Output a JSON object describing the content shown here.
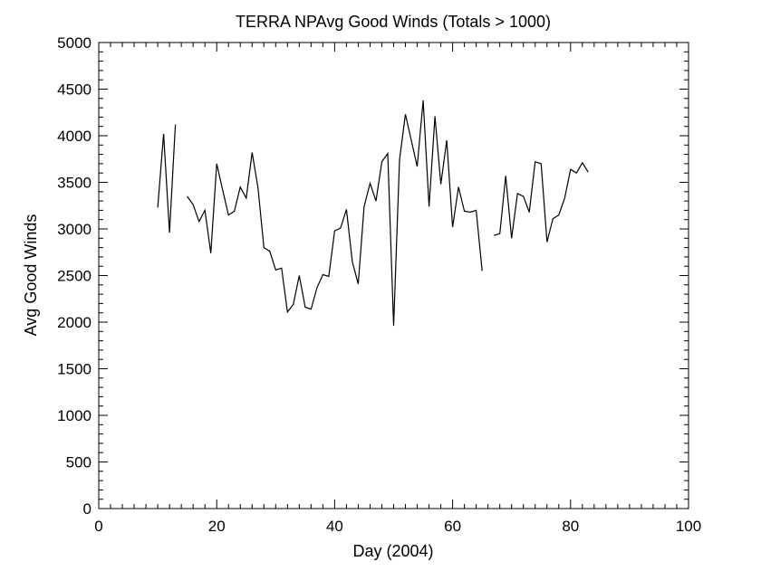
{
  "chart_data": {
    "type": "line",
    "title": "TERRA NPAvg Good Winds (Totals > 1000)",
    "xlabel": "Day (2004)",
    "ylabel": "Avg Good Winds",
    "xlim": [
      0,
      100
    ],
    "ylim": [
      0,
      5000
    ],
    "xticks": [
      "0",
      "20",
      "40",
      "60",
      "80",
      "100"
    ],
    "yticks": [
      "0",
      "500",
      "1000",
      "1500",
      "2000",
      "2500",
      "3000",
      "3500",
      "4000",
      "4500",
      "5000"
    ],
    "grid": false,
    "line_color": "#000000",
    "series": [
      {
        "segments": [
          [
            [
              10,
              3230
            ],
            [
              11,
              4020
            ],
            [
              12,
              2960
            ],
            [
              13,
              4120
            ]
          ],
          [
            [
              15,
              3350
            ],
            [
              16,
              3260
            ],
            [
              17,
              3080
            ],
            [
              18,
              3200
            ],
            [
              19,
              2740
            ],
            [
              20,
              3700
            ],
            [
              21,
              3420
            ],
            [
              22,
              3150
            ],
            [
              23,
              3190
            ],
            [
              24,
              3450
            ],
            [
              25,
              3330
            ],
            [
              26,
              3820
            ],
            [
              27,
              3440
            ],
            [
              28,
              2800
            ],
            [
              29,
              2760
            ],
            [
              30,
              2560
            ],
            [
              31,
              2580
            ],
            [
              32,
              2110
            ],
            [
              33,
              2190
            ],
            [
              34,
              2500
            ],
            [
              35,
              2160
            ],
            [
              36,
              2140
            ],
            [
              37,
              2370
            ],
            [
              38,
              2510
            ],
            [
              39,
              2490
            ],
            [
              40,
              2980
            ],
            [
              41,
              3010
            ],
            [
              42,
              3210
            ],
            [
              43,
              2650
            ],
            [
              44,
              2410
            ],
            [
              45,
              3240
            ],
            [
              46,
              3490
            ],
            [
              47,
              3300
            ],
            [
              48,
              3720
            ],
            [
              49,
              3810
            ],
            [
              50,
              1960
            ],
            [
              51,
              3740
            ],
            [
              52,
              4230
            ],
            [
              53,
              3950
            ],
            [
              54,
              3670
            ],
            [
              55,
              4380
            ],
            [
              56,
              3240
            ],
            [
              57,
              4210
            ],
            [
              58,
              3480
            ],
            [
              59,
              3950
            ],
            [
              60,
              3020
            ],
            [
              61,
              3450
            ],
            [
              62,
              3190
            ],
            [
              63,
              3180
            ],
            [
              64,
              3200
            ],
            [
              65,
              2550
            ]
          ],
          [
            [
              67,
              2930
            ],
            [
              68,
              2950
            ],
            [
              69,
              3570
            ],
            [
              70,
              2900
            ],
            [
              71,
              3380
            ],
            [
              72,
              3350
            ],
            [
              73,
              3180
            ],
            [
              74,
              3720
            ],
            [
              75,
              3700
            ],
            [
              76,
              2860
            ],
            [
              77,
              3110
            ],
            [
              78,
              3150
            ],
            [
              79,
              3330
            ],
            [
              80,
              3640
            ],
            [
              81,
              3600
            ],
            [
              82,
              3710
            ],
            [
              83,
              3610
            ]
          ]
        ]
      }
    ]
  }
}
